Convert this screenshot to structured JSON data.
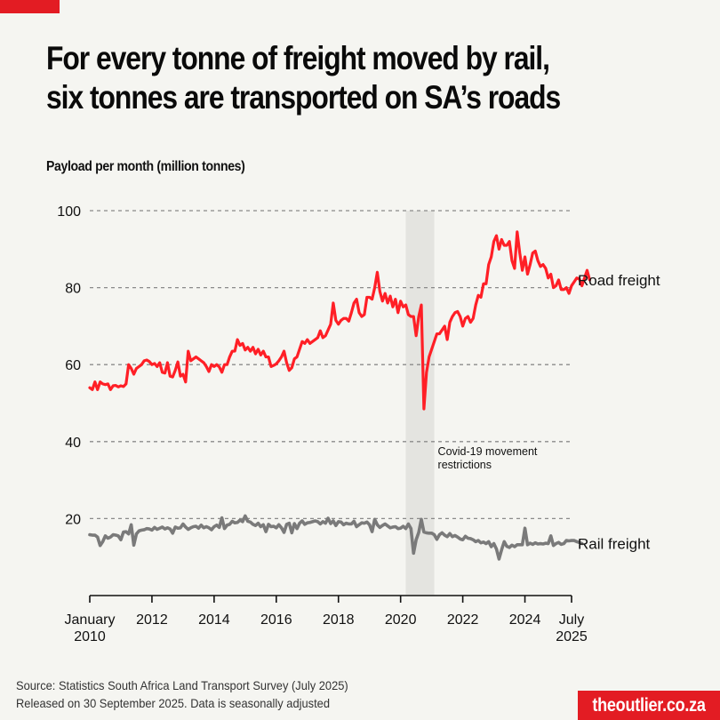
{
  "header": {
    "title_line1": "For every tonne of freight moved by rail,",
    "title_line2": "six tonnes are transported on SA’s roads",
    "subtitle": "Payload per month (million tonnes)"
  },
  "footer": {
    "source_line1": "Source: Statistics South Africa Land Transport Survey (July 2025)",
    "source_line2": "Released on 30 September 2025. Data is seasonally adjusted",
    "brand": "theoutlier.co.za"
  },
  "colors": {
    "background": "#f5f5f1",
    "road": "#ff1f26",
    "rail": "#7a7a7a",
    "brand": "#e31c23",
    "covid_band": "#e4e4e0",
    "grid": "#8a8a8a"
  },
  "chart_data": {
    "type": "line",
    "title": "For every tonne of freight moved by rail, six tonnes are transported on SA’s roads",
    "ylabel": "Payload per month (million tonnes)",
    "xlabel": "",
    "ylim": [
      0,
      100
    ],
    "grid": true,
    "yticks": [
      20,
      40,
      60,
      80,
      100
    ],
    "ytick_labels": [
      "20",
      "40",
      "60",
      "80",
      "100"
    ],
    "xlim": [
      "2010-01",
      "2025-07"
    ],
    "xticks": [
      {
        "month": "2010-01",
        "label_line1": "January",
        "label_line2": "2010"
      },
      {
        "month": "2012-01",
        "label_line1": "2012",
        "label_line2": ""
      },
      {
        "month": "2014-01",
        "label_line1": "2014",
        "label_line2": ""
      },
      {
        "month": "2016-01",
        "label_line1": "2016",
        "label_line2": ""
      },
      {
        "month": "2018-01",
        "label_line1": "2018",
        "label_line2": ""
      },
      {
        "month": "2020-01",
        "label_line1": "2020",
        "label_line2": ""
      },
      {
        "month": "2022-01",
        "label_line1": "2022",
        "label_line2": ""
      },
      {
        "month": "2024-01",
        "label_line1": "2024",
        "label_line2": ""
      },
      {
        "month": "2025-07",
        "label_line1": "July",
        "label_line2": "2025"
      }
    ],
    "annotations": [
      {
        "type": "shaded_period",
        "start": "2020-03",
        "end": "2021-02",
        "label_line1": "Covid-19 movement",
        "label_line2": "restrictions"
      }
    ],
    "start_month": "2010-01",
    "series": [
      {
        "name": "Road freight",
        "label": "Road freight",
        "values": [
          54,
          53.5,
          55.5,
          53.5,
          55.5,
          55,
          54.8,
          55,
          53.5,
          54.5,
          54.6,
          54.2,
          54.5,
          54.3,
          55,
          60,
          59,
          57.5,
          59,
          59.5,
          60,
          61,
          61.2,
          60.8,
          60,
          60.3,
          59.5,
          60.5,
          58,
          57.8,
          60.5,
          57,
          56.8,
          58.5,
          60.7,
          57,
          57.5,
          55.5,
          63.5,
          61,
          61.5,
          62,
          61.5,
          61,
          60.5,
          59.5,
          58.2,
          60,
          59.5,
          60,
          59.4,
          58,
          60,
          60,
          62,
          63.5,
          63.5,
          66.5,
          65,
          65.5,
          63.8,
          64.5,
          63.5,
          64.5,
          62.8,
          64,
          62.5,
          63.5,
          62,
          62,
          59.5,
          59.8,
          60.2,
          61,
          62,
          63.5,
          60.5,
          58.5,
          59.2,
          61.5,
          62,
          64,
          66,
          65.5,
          66.5,
          65.5,
          66,
          66.5,
          67,
          68.8,
          67,
          67.5,
          69,
          70.5,
          76,
          71.5,
          70.5,
          71.5,
          72,
          72,
          71.3,
          73.5,
          76,
          77,
          73.5,
          72.5,
          73,
          77.5,
          77.5,
          77,
          80,
          84,
          79,
          76.5,
          78.5,
          76,
          77.8,
          75,
          77,
          73.5,
          76.5,
          75,
          75.5,
          73,
          72.5,
          72.5,
          67.5,
          72.5,
          75.5,
          48.5,
          58,
          62,
          64,
          66,
          68,
          68,
          69,
          70,
          66.5,
          71,
          72.5,
          73.5,
          73.8,
          72.5,
          70,
          72,
          72.5,
          71,
          72,
          75.5,
          78,
          77.5,
          81,
          81,
          86,
          88,
          92,
          93.5,
          90,
          92.5,
          91,
          91,
          92,
          87,
          85,
          94.5,
          89,
          84.5,
          88,
          83.5,
          86,
          89,
          89.5,
          87,
          85.5,
          86,
          85,
          82.5,
          83.5,
          80,
          80.5,
          82,
          79.5,
          79.5,
          80,
          78.5,
          80.5,
          81.5,
          82.5,
          82.3,
          80.5,
          82.5,
          84.5,
          82
        ]
      },
      {
        "name": "Rail freight",
        "label": "Rail freight",
        "values": [
          15.8,
          15.7,
          15.7,
          15.2,
          13,
          14,
          15.5,
          14.9,
          15.2,
          15.8,
          15.7,
          15.5,
          14.5,
          16.5,
          16.6,
          16,
          18.4,
          13.1,
          16,
          16.8,
          17,
          17.1,
          17.4,
          17.3,
          17,
          17.7,
          17.2,
          17.5,
          17.8,
          17.3,
          17.6,
          17.3,
          16.2,
          17.8,
          17.5,
          17.6,
          18.6,
          17.8,
          17.2,
          17.6,
          17.9,
          18,
          17.5,
          18.3,
          17.6,
          17.9,
          17.6,
          17.1,
          17.9,
          18.3,
          17.7,
          20.2,
          17.4,
          18.3,
          18.5,
          19.3,
          18.9,
          19,
          19.6,
          19.2,
          20.7,
          19.3,
          19.1,
          18.5,
          18.2,
          18.8,
          17.9,
          18.4,
          16.6,
          18.5,
          17.9,
          18,
          17.6,
          18.4,
          17.6,
          16.4,
          18.5,
          18.8,
          16.3,
          18.7,
          17.4,
          18.8,
          19.4,
          18.5,
          18.9,
          19,
          19.2,
          19.4,
          19.2,
          18.6,
          19.2,
          18.8,
          20.1,
          18.7,
          19.4,
          18.2,
          19.2,
          19.1,
          18.4,
          18.8,
          18.6,
          18.6,
          19.3,
          17.9,
          18.4,
          18.9,
          18.8,
          19.1,
          18.4,
          16.6,
          19.8,
          18.4,
          17.7,
          18.2,
          18.6,
          18.1,
          17.6,
          17.8,
          17.9,
          17.4,
          17.5,
          18,
          17.4,
          18.6,
          17.4,
          11,
          14.5,
          16.4,
          19.8,
          16.5,
          16.3,
          16.2,
          16.2,
          15.8,
          14.6,
          15.8,
          16.3,
          15.7,
          15.3,
          16.1,
          15.3,
          15.6,
          15.2,
          14.7,
          14.5,
          15.4,
          14.9,
          14.8,
          14.5,
          14,
          14.3,
          13.7,
          13.9,
          13.5,
          14,
          12.7,
          13.5,
          12.1,
          9.5,
          11.9,
          14,
          12.8,
          12.5,
          13.1,
          12.7,
          13.2,
          13.2,
          13.2,
          17.5,
          13.2,
          13.6,
          13.3,
          13.7,
          13.4,
          13.5,
          13.4,
          13.6,
          13.5,
          15.5,
          13,
          13.5,
          13.8,
          13.3,
          13.5,
          14.3,
          14.2,
          14.3,
          14.3,
          14,
          13.8,
          13.5
        ]
      }
    ]
  }
}
